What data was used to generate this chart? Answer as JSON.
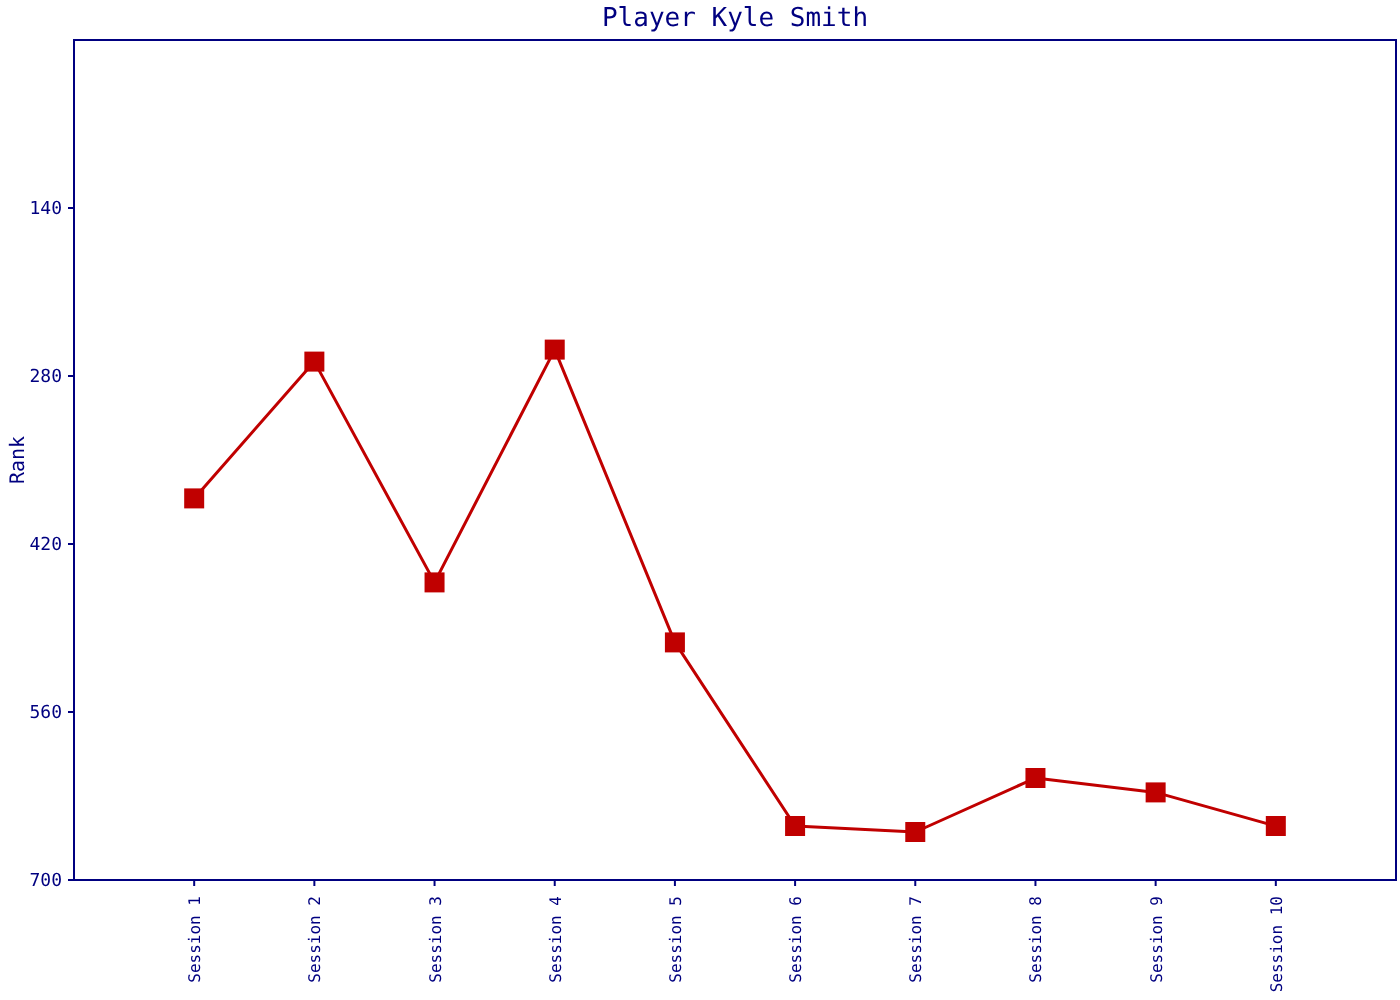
{
  "chart_data": {
    "type": "line",
    "title": "Player Kyle Smith",
    "ylabel": "Rank",
    "categories": [
      "Session 1",
      "Session 2",
      "Session 3",
      "Session 4",
      "Session 5",
      "Session 6",
      "Session 7",
      "Session 8",
      "Session 9",
      "Session 10"
    ],
    "series": [
      {
        "color": "#c00000",
        "values": [
          382,
          268,
          452,
          258,
          502,
          655,
          660,
          615,
          627,
          655
        ]
      }
    ],
    "ylim": [
      700,
      0
    ],
    "yticks": [
      140,
      280,
      420,
      560,
      700
    ],
    "grid": false,
    "marker": "square",
    "line_style": "solid"
  }
}
